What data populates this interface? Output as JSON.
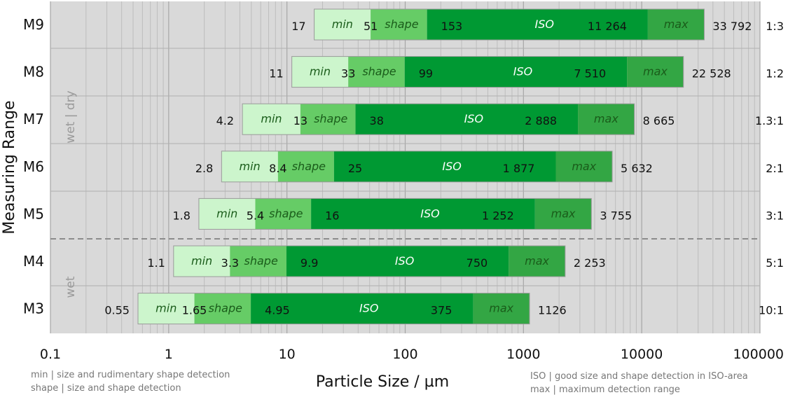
{
  "chart_data": {
    "type": "bar",
    "orientation": "horizontal",
    "stacked": true,
    "xscale": "log",
    "xlim": [
      0.1,
      100000
    ],
    "xlabel": "Particle Size / µm",
    "ylabel": "Measuring Range",
    "x_ticks": [
      {
        "value": 0.1,
        "label": "0.1"
      },
      {
        "value": 1,
        "label": "1"
      },
      {
        "value": 10,
        "label": "10"
      },
      {
        "value": 100,
        "label": "100"
      },
      {
        "value": 1000,
        "label": "1000"
      },
      {
        "value": 10000,
        "label": "10000"
      },
      {
        "value": 100000,
        "label": "100000"
      }
    ],
    "grid": true,
    "segment_labels": [
      "min",
      "shape",
      "ISO",
      "max"
    ],
    "colors": {
      "min": "#ccf5cc",
      "shape": "#66cc66",
      "iso": "#009933",
      "max": "#33a644",
      "min_text": "#1a5c1a",
      "shape_text": "#1a5c1a",
      "iso_text": "#ffffff",
      "max_text": "#1a5c1a",
      "plot_bg": "#d9d9d9"
    },
    "rows": [
      {
        "name": "M9",
        "ratio": "1:3",
        "bounds": [
          17,
          51,
          153,
          11264,
          33792
        ],
        "labels": [
          "17",
          "51",
          "153",
          "11 264",
          "33 792"
        ]
      },
      {
        "name": "M8",
        "ratio": "1:2",
        "bounds": [
          11,
          33,
          99,
          7510,
          22528
        ],
        "labels": [
          "11",
          "33",
          "99",
          "7 510",
          "22 528"
        ]
      },
      {
        "name": "M7",
        "ratio": "1.3:1",
        "bounds": [
          4.2,
          13,
          38,
          2888,
          8665
        ],
        "labels": [
          "4.2",
          "13",
          "38",
          "2 888",
          "8 665"
        ]
      },
      {
        "name": "M6",
        "ratio": "2:1",
        "bounds": [
          2.8,
          8.4,
          25,
          1877,
          5632
        ],
        "labels": [
          "2.8",
          "8.4",
          "25",
          "1 877",
          "5 632"
        ]
      },
      {
        "name": "M5",
        "ratio": "3:1",
        "bounds": [
          1.8,
          5.4,
          16,
          1252,
          3755
        ],
        "labels": [
          "1.8",
          "5.4",
          "16",
          "1 252",
          "3 755"
        ]
      },
      {
        "name": "M4",
        "ratio": "5:1",
        "bounds": [
          1.1,
          3.3,
          9.9,
          750,
          2253
        ],
        "labels": [
          "1.1",
          "3.3",
          "9.9",
          "750",
          "2 253"
        ]
      },
      {
        "name": "M3",
        "ratio": "10:1",
        "bounds": [
          0.55,
          1.65,
          4.95,
          375,
          1126
        ],
        "labels": [
          "0.55",
          "1.65",
          "4.95",
          "375",
          "1126"
        ]
      }
    ],
    "groups": [
      {
        "label": "wet | dry",
        "rows": [
          "M9",
          "M8",
          "M7",
          "M6",
          "M5"
        ]
      },
      {
        "label": "wet",
        "rows": [
          "M4",
          "M3"
        ]
      }
    ],
    "legend": [
      "min | size and rudimentary shape detection",
      "shape | size and shape detection",
      "ISO | good size and shape detection in ISO-area",
      "max | maximum detection range"
    ]
  }
}
